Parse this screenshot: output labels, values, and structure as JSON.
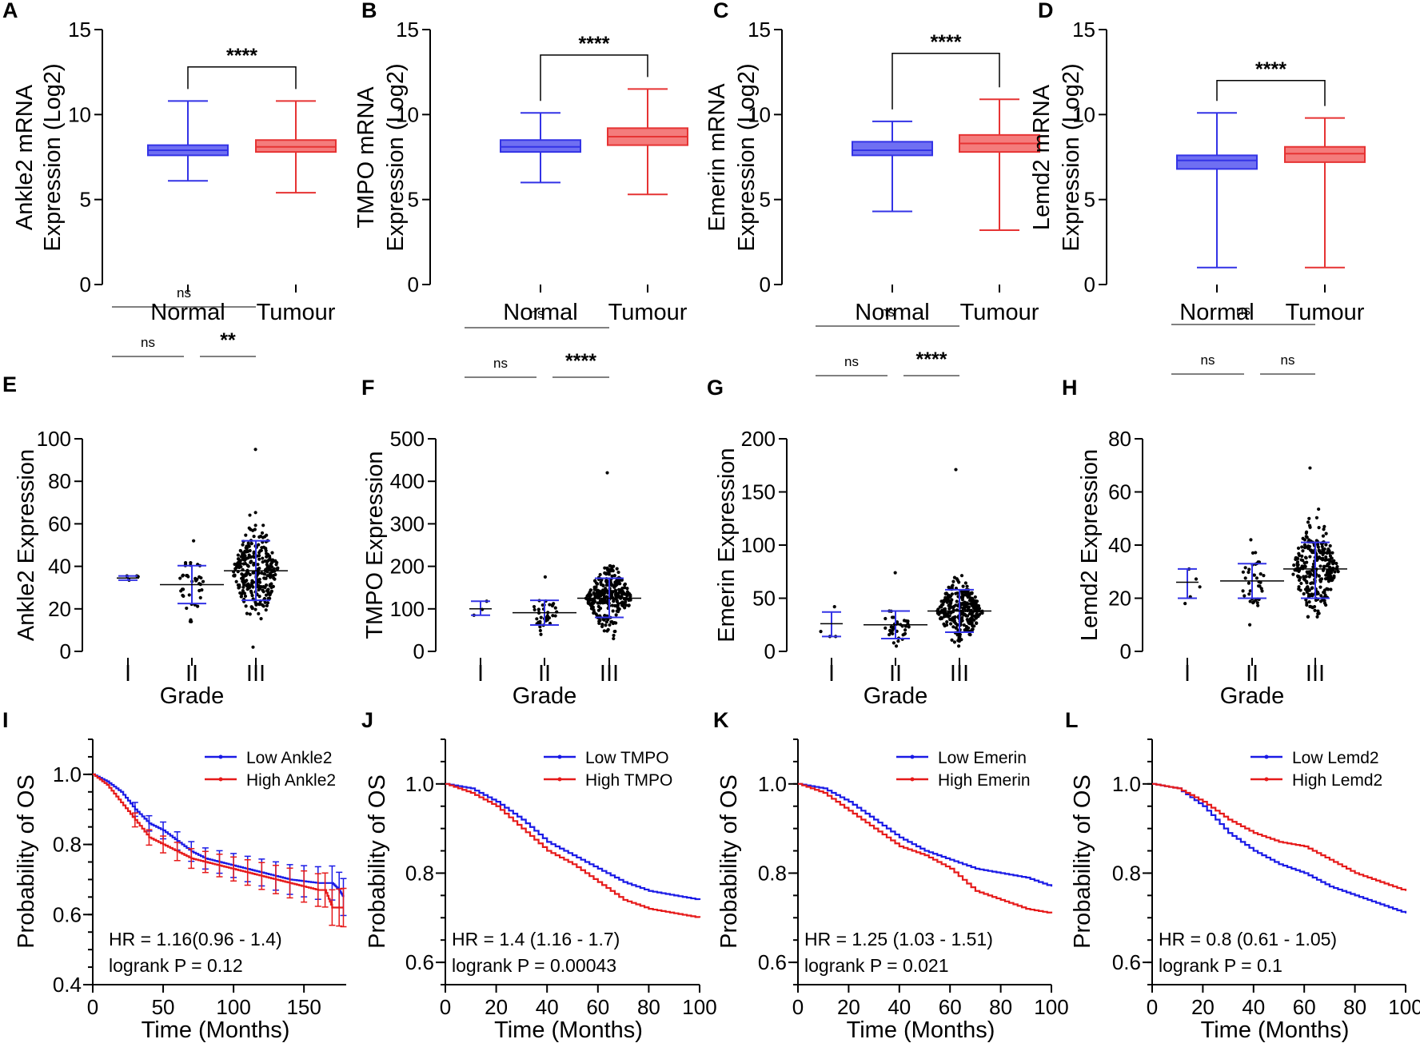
{
  "colors": {
    "normal": "#3333e6",
    "tumour": "#e63333",
    "normal_fill": "#6f6ff2",
    "tumour_fill": "#f47c7c",
    "low": "#1a1ae6",
    "high": "#e61a1a",
    "dots": "#000000"
  },
  "chart_data": [
    {
      "panel": "A",
      "type": "box",
      "ylabel": [
        "Ankle2 mRNA",
        "Expression (Log2)"
      ],
      "ylim": [
        0,
        15
      ],
      "yticks": [
        "0",
        "5",
        "10",
        "15"
      ],
      "categories": [
        "Normal",
        "Tumour"
      ],
      "boxes": [
        {
          "min": 6.1,
          "q1": 7.6,
          "median": 7.9,
          "q3": 8.2,
          "max": 10.8
        },
        {
          "min": 5.4,
          "q1": 7.8,
          "median": 8.1,
          "q3": 8.5,
          "max": 10.8
        }
      ],
      "significance": [
        {
          "from": 0,
          "to": 1,
          "label": "****",
          "y": 12.8
        }
      ]
    },
    {
      "panel": "B",
      "type": "box",
      "ylabel": [
        "TMPO mRNA",
        "Expression (Log2)"
      ],
      "ylim": [
        0,
        15
      ],
      "yticks": [
        "0",
        "5",
        "10",
        "15"
      ],
      "categories": [
        "Normal",
        "Tumour"
      ],
      "boxes": [
        {
          "min": 6.0,
          "q1": 7.8,
          "median": 8.1,
          "q3": 8.5,
          "max": 10.1
        },
        {
          "min": 5.3,
          "q1": 8.2,
          "median": 8.7,
          "q3": 9.2,
          "max": 11.5
        }
      ],
      "significance": [
        {
          "from": 0,
          "to": 1,
          "label": "****",
          "y": 13.5
        }
      ]
    },
    {
      "panel": "C",
      "type": "box",
      "ylabel": [
        "Emerin mRNA",
        "Expression (Log2)"
      ],
      "ylim": [
        0,
        15
      ],
      "yticks": [
        "0",
        "5",
        "10",
        "15"
      ],
      "categories": [
        "Normal",
        "Tumour"
      ],
      "boxes": [
        {
          "min": 4.3,
          "q1": 7.6,
          "median": 7.9,
          "q3": 8.4,
          "max": 9.6
        },
        {
          "min": 3.2,
          "q1": 7.8,
          "median": 8.3,
          "q3": 8.8,
          "max": 10.9
        }
      ],
      "significance": [
        {
          "from": 0,
          "to": 1,
          "label": "****",
          "y": 13.6
        }
      ]
    },
    {
      "panel": "D",
      "type": "box",
      "ylabel": [
        "Lemd2 mRNA",
        "Expression (Log2)"
      ],
      "ylim": [
        0,
        15
      ],
      "yticks": [
        "0",
        "5",
        "10",
        "15"
      ],
      "categories": [
        "Normal",
        "Tumour"
      ],
      "boxes": [
        {
          "min": 1.0,
          "q1": 6.8,
          "median": 7.3,
          "q3": 7.6,
          "max": 10.1
        },
        {
          "min": 1.0,
          "q1": 7.2,
          "median": 7.7,
          "q3": 8.1,
          "max": 9.8
        }
      ],
      "significance": [
        {
          "from": 0,
          "to": 1,
          "label": "****",
          "y": 12.0
        }
      ]
    },
    {
      "panel": "E",
      "type": "scatter-dot",
      "ylabel": "Ankle2 Expression",
      "xlabel": "Grade",
      "ylim": [
        0,
        100
      ],
      "yticks": [
        "0",
        "20",
        "40",
        "60",
        "80",
        "100"
      ],
      "categories": [
        "I",
        "II",
        "III"
      ],
      "groups": [
        {
          "n": 4,
          "center": 34.5,
          "spread": 0.9,
          "mean": 34.5,
          "sd_low": 33.5,
          "sd_high": 35.5,
          "max": 35.5,
          "min": 33.5
        },
        {
          "n": 40,
          "center": 31.4,
          "spread": 8,
          "mean": 31.4,
          "sd_low": 22.5,
          "sd_high": 40.3,
          "max": 52,
          "min": 14
        },
        {
          "n": 290,
          "center": 38,
          "spread": 11,
          "mean": 37.9,
          "sd_low": 24,
          "sd_high": 52,
          "max": 95,
          "min": 2
        }
      ],
      "significance": [
        {
          "from": 0,
          "to": 2,
          "label": "ns",
          "offset": 3
        },
        {
          "from": 0,
          "to": 1,
          "label": "ns",
          "offset": 1
        },
        {
          "from": 1,
          "to": 2,
          "label": "**",
          "offset": 1
        }
      ]
    },
    {
      "panel": "F",
      "type": "scatter-dot",
      "ylabel": "TMPO Expression",
      "xlabel": "Grade",
      "ylim": [
        0,
        500
      ],
      "yticks": [
        "0",
        "100",
        "200",
        "300",
        "400",
        "500"
      ],
      "categories": [
        "I",
        "II",
        "III"
      ],
      "groups": [
        {
          "n": 3,
          "center": 100,
          "spread": 15,
          "mean": 100,
          "sd_low": 85,
          "sd_high": 118,
          "max": 118,
          "min": 85
        },
        {
          "n": 40,
          "center": 91,
          "spread": 22,
          "mean": 91,
          "sd_low": 62,
          "sd_high": 120,
          "max": 175,
          "min": 40
        },
        {
          "n": 290,
          "center": 125,
          "spread": 35,
          "mean": 125,
          "sd_low": 80,
          "sd_high": 172,
          "max": 420,
          "min": 30
        }
      ],
      "significance": [
        {
          "from": 0,
          "to": 2,
          "label": "ns",
          "offset": 3
        },
        {
          "from": 0,
          "to": 1,
          "label": "ns",
          "offset": 1
        },
        {
          "from": 1,
          "to": 2,
          "label": "****",
          "offset": 1
        }
      ]
    },
    {
      "panel": "G",
      "type": "scatter-dot",
      "ylabel": "Emerin Expression",
      "xlabel": "Grade",
      "ylim": [
        0,
        200
      ],
      "yticks": [
        "0",
        "50",
        "100",
        "150",
        "200"
      ],
      "categories": [
        "I",
        "II",
        "III"
      ],
      "groups": [
        {
          "n": 4,
          "center": 26,
          "spread": 10,
          "mean": 26,
          "sd_low": 14,
          "sd_high": 37,
          "max": 42,
          "min": 14
        },
        {
          "n": 40,
          "center": 25,
          "spread": 10,
          "mean": 25,
          "sd_low": 12,
          "sd_high": 38,
          "max": 74,
          "min": 5
        },
        {
          "n": 290,
          "center": 38,
          "spread": 14,
          "mean": 38,
          "sd_low": 18,
          "sd_high": 58,
          "max": 171,
          "min": 5
        }
      ],
      "significance": [
        {
          "from": 0,
          "to": 2,
          "label": "ns",
          "offset": 3
        },
        {
          "from": 0,
          "to": 1,
          "label": "ns",
          "offset": 1
        },
        {
          "from": 1,
          "to": 2,
          "label": "****",
          "offset": 1
        }
      ]
    },
    {
      "panel": "H",
      "type": "scatter-dot",
      "ylabel": "Lemd2 Expression",
      "xlabel": "Grade",
      "ylim": [
        0,
        80
      ],
      "yticks": [
        "0",
        "20",
        "40",
        "60",
        "80"
      ],
      "categories": [
        "I",
        "II",
        "III"
      ],
      "groups": [
        {
          "n": 5,
          "center": 26,
          "spread": 5,
          "mean": 26,
          "sd_low": 20,
          "sd_high": 31,
          "max": 31,
          "min": 18
        },
        {
          "n": 40,
          "center": 26.5,
          "spread": 6,
          "mean": 26.5,
          "sd_low": 20,
          "sd_high": 33,
          "max": 42,
          "min": 10
        },
        {
          "n": 290,
          "center": 31,
          "spread": 9,
          "mean": 31,
          "sd_low": 20,
          "sd_high": 41,
          "max": 69,
          "min": 13
        }
      ],
      "significance": [
        {
          "from": 0,
          "to": 2,
          "label": "ns",
          "offset": 3
        },
        {
          "from": 0,
          "to": 1,
          "label": "ns",
          "offset": 1
        },
        {
          "from": 1,
          "to": 2,
          "label": "ns",
          "offset": 1
        }
      ]
    },
    {
      "panel": "I",
      "type": "kaplan-meier",
      "ylabel": "Probability of OS",
      "xlabel": "Time (Months)",
      "xlim": [
        0,
        180
      ],
      "ylim": [
        0.4,
        1.1
      ],
      "xticks": [
        "0",
        "50",
        "100",
        "150"
      ],
      "xtick_values": [
        0,
        50,
        100,
        150
      ],
      "yticks": [
        "0.4",
        "0.6",
        "0.8",
        "1.0"
      ],
      "ytick_values": [
        0.4,
        0.6,
        0.8,
        1.0
      ],
      "legend": [
        "Low Ankle2",
        "High Ankle2"
      ],
      "stats": [
        "HR = 1.16(0.96 - 1.4)",
        "logrank P = 0.12"
      ],
      "error_bars": true,
      "series": [
        {
          "name": "Low Ankle2",
          "x": [
            0,
            10,
            20,
            30,
            40,
            50,
            60,
            70,
            80,
            90,
            100,
            110,
            120,
            130,
            140,
            150,
            160,
            170,
            175,
            178
          ],
          "y": [
            1.0,
            0.98,
            0.95,
            0.9,
            0.86,
            0.84,
            0.81,
            0.78,
            0.76,
            0.75,
            0.74,
            0.73,
            0.72,
            0.71,
            0.7,
            0.695,
            0.69,
            0.69,
            0.67,
            0.65
          ]
        },
        {
          "name": "High Ankle2",
          "x": [
            0,
            10,
            20,
            30,
            40,
            50,
            60,
            70,
            80,
            90,
            100,
            110,
            120,
            130,
            140,
            150,
            160,
            165,
            170,
            175,
            178
          ],
          "y": [
            1.0,
            0.97,
            0.92,
            0.87,
            0.82,
            0.8,
            0.78,
            0.76,
            0.75,
            0.74,
            0.73,
            0.72,
            0.71,
            0.7,
            0.69,
            0.68,
            0.67,
            0.67,
            0.62,
            0.62,
            0.62
          ]
        }
      ]
    },
    {
      "panel": "J",
      "type": "kaplan-meier",
      "ylabel": "Probability of OS",
      "xlabel": "Time (Months)",
      "xlim": [
        0,
        100
      ],
      "ylim": [
        0.55,
        1.1
      ],
      "xticks": [
        "0",
        "20",
        "40",
        "60",
        "80",
        "100"
      ],
      "xtick_values": [
        0,
        20,
        40,
        60,
        80,
        100
      ],
      "yticks": [
        "0.6",
        "0.8",
        "1.0"
      ],
      "ytick_values": [
        0.6,
        0.8,
        1.0
      ],
      "legend": [
        "Low TMPO",
        "High TMPO"
      ],
      "stats": [
        "HR = 1.4 (1.16 - 1.7)",
        "logrank P = 0.00043"
      ],
      "error_bars": false,
      "series": [
        {
          "name": "Low TMPO",
          "x": [
            0,
            10,
            20,
            30,
            40,
            50,
            60,
            70,
            80,
            90,
            100
          ],
          "y": [
            1.0,
            0.99,
            0.96,
            0.92,
            0.87,
            0.84,
            0.81,
            0.78,
            0.76,
            0.75,
            0.74
          ]
        },
        {
          "name": "High TMPO",
          "x": [
            0,
            10,
            20,
            30,
            40,
            50,
            60,
            70,
            80,
            90,
            100
          ],
          "y": [
            1.0,
            0.98,
            0.95,
            0.9,
            0.85,
            0.82,
            0.78,
            0.74,
            0.72,
            0.71,
            0.7
          ]
        }
      ]
    },
    {
      "panel": "K",
      "type": "kaplan-meier",
      "ylabel": "Probability of OS",
      "xlabel": "Time (Months)",
      "xlim": [
        0,
        100
      ],
      "ylim": [
        0.55,
        1.1
      ],
      "xticks": [
        "0",
        "20",
        "40",
        "60",
        "80",
        "100"
      ],
      "xtick_values": [
        0,
        20,
        40,
        60,
        80,
        100
      ],
      "yticks": [
        "0.6",
        "0.8",
        "1.0"
      ],
      "ytick_values": [
        0.6,
        0.8,
        1.0
      ],
      "legend": [
        "Low Emerin",
        "High Emerin"
      ],
      "stats": [
        "HR = 1.25 (1.03 - 1.51)",
        "logrank P = 0.021"
      ],
      "error_bars": false,
      "series": [
        {
          "name": "Low Emerin",
          "x": [
            0,
            10,
            20,
            30,
            40,
            50,
            60,
            70,
            80,
            90,
            100
          ],
          "y": [
            1.0,
            0.99,
            0.96,
            0.92,
            0.88,
            0.85,
            0.83,
            0.81,
            0.8,
            0.79,
            0.77
          ]
        },
        {
          "name": "High Emerin",
          "x": [
            0,
            10,
            20,
            30,
            40,
            50,
            60,
            70,
            80,
            90,
            100
          ],
          "y": [
            1.0,
            0.98,
            0.94,
            0.9,
            0.86,
            0.84,
            0.81,
            0.76,
            0.74,
            0.72,
            0.71
          ]
        }
      ]
    },
    {
      "panel": "L",
      "type": "kaplan-meier",
      "ylabel": "Probability of OS",
      "xlabel": "Time (Months)",
      "xlim": [
        0,
        100
      ],
      "ylim": [
        0.55,
        1.1
      ],
      "xticks": [
        "0",
        "20",
        "40",
        "60",
        "80",
        "100"
      ],
      "xtick_values": [
        0,
        20,
        40,
        60,
        80,
        100
      ],
      "yticks": [
        "0.6",
        "0.8",
        "1.0"
      ],
      "ytick_values": [
        0.6,
        0.8,
        1.0
      ],
      "legend": [
        "Low Lemd2",
        "High Lemd2"
      ],
      "stats": [
        "HR = 0.8 (0.61 - 1.05)",
        "logrank P = 0.1"
      ],
      "error_bars": false,
      "series": [
        {
          "name": "Low Lemd2",
          "x": [
            0,
            10,
            20,
            30,
            40,
            50,
            60,
            70,
            80,
            90,
            100
          ],
          "y": [
            1.0,
            0.99,
            0.95,
            0.89,
            0.85,
            0.82,
            0.8,
            0.77,
            0.75,
            0.73,
            0.71
          ]
        },
        {
          "name": "High Lemd2",
          "x": [
            0,
            10,
            20,
            30,
            40,
            50,
            60,
            70,
            80,
            90,
            100
          ],
          "y": [
            1.0,
            0.99,
            0.96,
            0.92,
            0.89,
            0.87,
            0.86,
            0.83,
            0.8,
            0.78,
            0.76
          ]
        }
      ]
    }
  ]
}
